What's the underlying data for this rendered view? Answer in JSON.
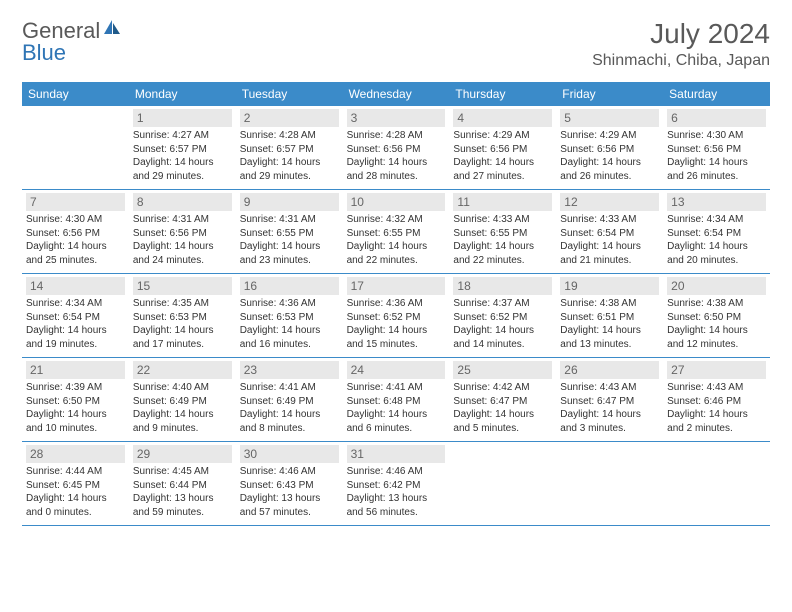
{
  "logo": {
    "text1": "General",
    "text2": "Blue"
  },
  "title": "July 2024",
  "location": "Shinmachi, Chiba, Japan",
  "colors": {
    "header_bg": "#3b8bc9",
    "header_text": "#ffffff",
    "daynum_bg": "#e8e8e8",
    "border": "#3b8bc9",
    "body_text": "#333333",
    "title_text": "#595959"
  },
  "typography": {
    "title_fontsize": 28,
    "location_fontsize": 16,
    "dayheader_fontsize": 12,
    "daynum_fontsize": 12,
    "body_fontsize": 10
  },
  "day_headers": [
    "Sunday",
    "Monday",
    "Tuesday",
    "Wednesday",
    "Thursday",
    "Friday",
    "Saturday"
  ],
  "weeks": [
    [
      {
        "num": "",
        "sunrise": "",
        "sunset": "",
        "daylight1": "",
        "daylight2": ""
      },
      {
        "num": "1",
        "sunrise": "Sunrise: 4:27 AM",
        "sunset": "Sunset: 6:57 PM",
        "daylight1": "Daylight: 14 hours",
        "daylight2": "and 29 minutes."
      },
      {
        "num": "2",
        "sunrise": "Sunrise: 4:28 AM",
        "sunset": "Sunset: 6:57 PM",
        "daylight1": "Daylight: 14 hours",
        "daylight2": "and 29 minutes."
      },
      {
        "num": "3",
        "sunrise": "Sunrise: 4:28 AM",
        "sunset": "Sunset: 6:56 PM",
        "daylight1": "Daylight: 14 hours",
        "daylight2": "and 28 minutes."
      },
      {
        "num": "4",
        "sunrise": "Sunrise: 4:29 AM",
        "sunset": "Sunset: 6:56 PM",
        "daylight1": "Daylight: 14 hours",
        "daylight2": "and 27 minutes."
      },
      {
        "num": "5",
        "sunrise": "Sunrise: 4:29 AM",
        "sunset": "Sunset: 6:56 PM",
        "daylight1": "Daylight: 14 hours",
        "daylight2": "and 26 minutes."
      },
      {
        "num": "6",
        "sunrise": "Sunrise: 4:30 AM",
        "sunset": "Sunset: 6:56 PM",
        "daylight1": "Daylight: 14 hours",
        "daylight2": "and 26 minutes."
      }
    ],
    [
      {
        "num": "7",
        "sunrise": "Sunrise: 4:30 AM",
        "sunset": "Sunset: 6:56 PM",
        "daylight1": "Daylight: 14 hours",
        "daylight2": "and 25 minutes."
      },
      {
        "num": "8",
        "sunrise": "Sunrise: 4:31 AM",
        "sunset": "Sunset: 6:56 PM",
        "daylight1": "Daylight: 14 hours",
        "daylight2": "and 24 minutes."
      },
      {
        "num": "9",
        "sunrise": "Sunrise: 4:31 AM",
        "sunset": "Sunset: 6:55 PM",
        "daylight1": "Daylight: 14 hours",
        "daylight2": "and 23 minutes."
      },
      {
        "num": "10",
        "sunrise": "Sunrise: 4:32 AM",
        "sunset": "Sunset: 6:55 PM",
        "daylight1": "Daylight: 14 hours",
        "daylight2": "and 22 minutes."
      },
      {
        "num": "11",
        "sunrise": "Sunrise: 4:33 AM",
        "sunset": "Sunset: 6:55 PM",
        "daylight1": "Daylight: 14 hours",
        "daylight2": "and 22 minutes."
      },
      {
        "num": "12",
        "sunrise": "Sunrise: 4:33 AM",
        "sunset": "Sunset: 6:54 PM",
        "daylight1": "Daylight: 14 hours",
        "daylight2": "and 21 minutes."
      },
      {
        "num": "13",
        "sunrise": "Sunrise: 4:34 AM",
        "sunset": "Sunset: 6:54 PM",
        "daylight1": "Daylight: 14 hours",
        "daylight2": "and 20 minutes."
      }
    ],
    [
      {
        "num": "14",
        "sunrise": "Sunrise: 4:34 AM",
        "sunset": "Sunset: 6:54 PM",
        "daylight1": "Daylight: 14 hours",
        "daylight2": "and 19 minutes."
      },
      {
        "num": "15",
        "sunrise": "Sunrise: 4:35 AM",
        "sunset": "Sunset: 6:53 PM",
        "daylight1": "Daylight: 14 hours",
        "daylight2": "and 17 minutes."
      },
      {
        "num": "16",
        "sunrise": "Sunrise: 4:36 AM",
        "sunset": "Sunset: 6:53 PM",
        "daylight1": "Daylight: 14 hours",
        "daylight2": "and 16 minutes."
      },
      {
        "num": "17",
        "sunrise": "Sunrise: 4:36 AM",
        "sunset": "Sunset: 6:52 PM",
        "daylight1": "Daylight: 14 hours",
        "daylight2": "and 15 minutes."
      },
      {
        "num": "18",
        "sunrise": "Sunrise: 4:37 AM",
        "sunset": "Sunset: 6:52 PM",
        "daylight1": "Daylight: 14 hours",
        "daylight2": "and 14 minutes."
      },
      {
        "num": "19",
        "sunrise": "Sunrise: 4:38 AM",
        "sunset": "Sunset: 6:51 PM",
        "daylight1": "Daylight: 14 hours",
        "daylight2": "and 13 minutes."
      },
      {
        "num": "20",
        "sunrise": "Sunrise: 4:38 AM",
        "sunset": "Sunset: 6:50 PM",
        "daylight1": "Daylight: 14 hours",
        "daylight2": "and 12 minutes."
      }
    ],
    [
      {
        "num": "21",
        "sunrise": "Sunrise: 4:39 AM",
        "sunset": "Sunset: 6:50 PM",
        "daylight1": "Daylight: 14 hours",
        "daylight2": "and 10 minutes."
      },
      {
        "num": "22",
        "sunrise": "Sunrise: 4:40 AM",
        "sunset": "Sunset: 6:49 PM",
        "daylight1": "Daylight: 14 hours",
        "daylight2": "and 9 minutes."
      },
      {
        "num": "23",
        "sunrise": "Sunrise: 4:41 AM",
        "sunset": "Sunset: 6:49 PM",
        "daylight1": "Daylight: 14 hours",
        "daylight2": "and 8 minutes."
      },
      {
        "num": "24",
        "sunrise": "Sunrise: 4:41 AM",
        "sunset": "Sunset: 6:48 PM",
        "daylight1": "Daylight: 14 hours",
        "daylight2": "and 6 minutes."
      },
      {
        "num": "25",
        "sunrise": "Sunrise: 4:42 AM",
        "sunset": "Sunset: 6:47 PM",
        "daylight1": "Daylight: 14 hours",
        "daylight2": "and 5 minutes."
      },
      {
        "num": "26",
        "sunrise": "Sunrise: 4:43 AM",
        "sunset": "Sunset: 6:47 PM",
        "daylight1": "Daylight: 14 hours",
        "daylight2": "and 3 minutes."
      },
      {
        "num": "27",
        "sunrise": "Sunrise: 4:43 AM",
        "sunset": "Sunset: 6:46 PM",
        "daylight1": "Daylight: 14 hours",
        "daylight2": "and 2 minutes."
      }
    ],
    [
      {
        "num": "28",
        "sunrise": "Sunrise: 4:44 AM",
        "sunset": "Sunset: 6:45 PM",
        "daylight1": "Daylight: 14 hours",
        "daylight2": "and 0 minutes."
      },
      {
        "num": "29",
        "sunrise": "Sunrise: 4:45 AM",
        "sunset": "Sunset: 6:44 PM",
        "daylight1": "Daylight: 13 hours",
        "daylight2": "and 59 minutes."
      },
      {
        "num": "30",
        "sunrise": "Sunrise: 4:46 AM",
        "sunset": "Sunset: 6:43 PM",
        "daylight1": "Daylight: 13 hours",
        "daylight2": "and 57 minutes."
      },
      {
        "num": "31",
        "sunrise": "Sunrise: 4:46 AM",
        "sunset": "Sunset: 6:42 PM",
        "daylight1": "Daylight: 13 hours",
        "daylight2": "and 56 minutes."
      },
      {
        "num": "",
        "sunrise": "",
        "sunset": "",
        "daylight1": "",
        "daylight2": ""
      },
      {
        "num": "",
        "sunrise": "",
        "sunset": "",
        "daylight1": "",
        "daylight2": ""
      },
      {
        "num": "",
        "sunrise": "",
        "sunset": "",
        "daylight1": "",
        "daylight2": ""
      }
    ]
  ]
}
